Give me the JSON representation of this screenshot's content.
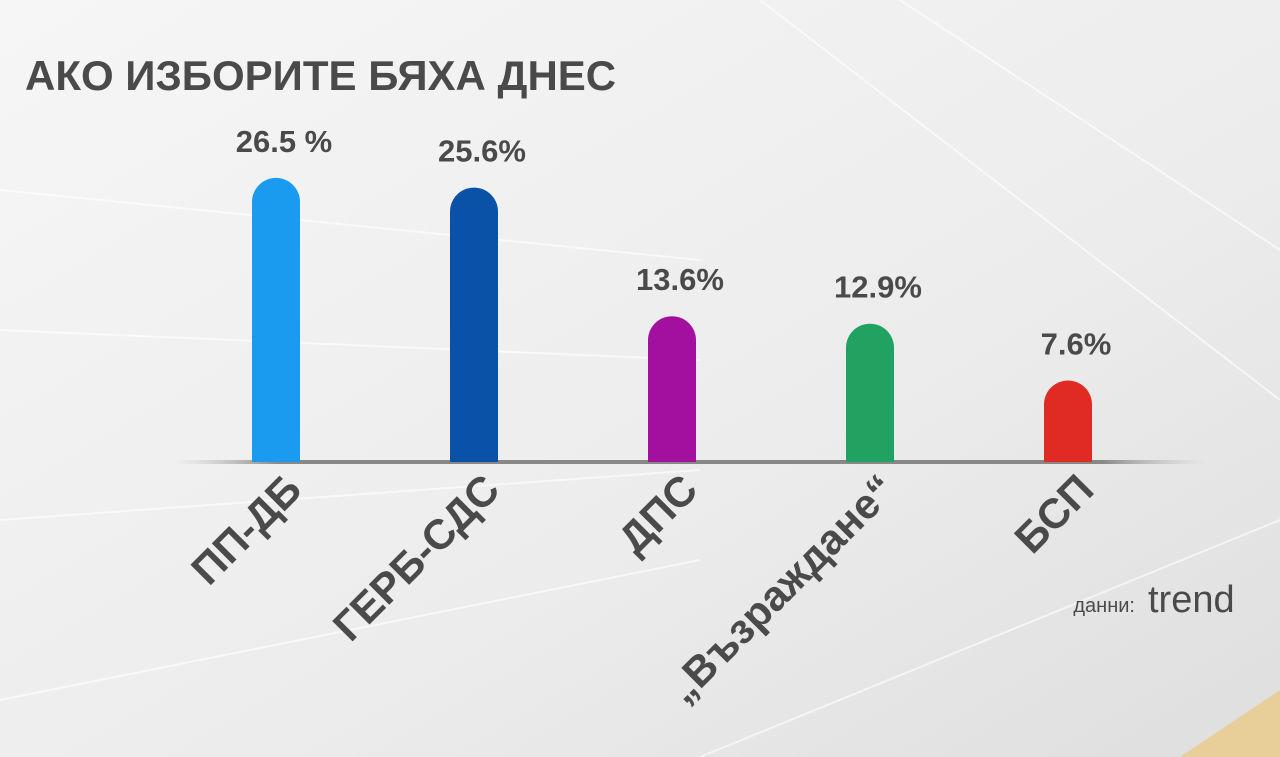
{
  "chart_data": {
    "type": "bar",
    "title": "АКО ИЗБОРИТЕ БЯХА ДНЕС",
    "categories": [
      "ПП-ДБ",
      "ГЕРБ-СДС",
      "ДПС",
      "„Възраждане“",
      "БСП"
    ],
    "values": [
      26.5,
      25.6,
      13.6,
      12.9,
      7.6
    ],
    "value_labels": [
      "26.5 %",
      "25.6%",
      "13.6%",
      "12.9%",
      "7.6%"
    ],
    "colors": [
      "#1a9bf0",
      "#0a52a8",
      "#a3109f",
      "#22a260",
      "#e02a24"
    ],
    "source_label": "данни:",
    "source": "trend"
  }
}
